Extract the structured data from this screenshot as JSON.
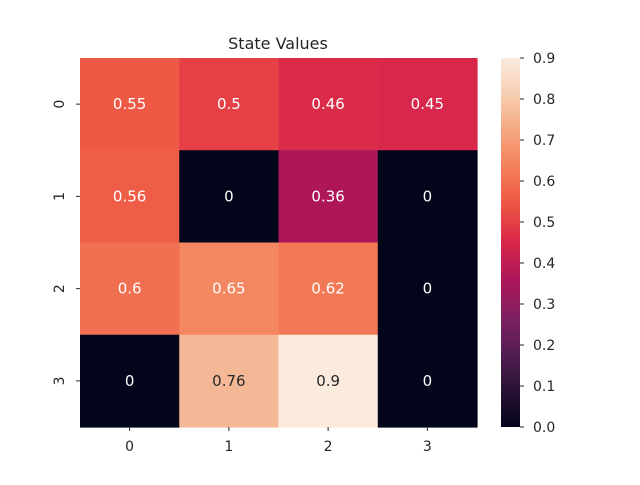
{
  "chart_data": {
    "type": "heatmap",
    "title": "State Values",
    "xlabel": "",
    "ylabel": "",
    "x_categories": [
      "0",
      "1",
      "2",
      "3"
    ],
    "y_categories": [
      "0",
      "1",
      "2",
      "3"
    ],
    "values": [
      [
        0.55,
        0.5,
        0.46,
        0.45
      ],
      [
        0.56,
        0,
        0.36,
        0
      ],
      [
        0.6,
        0.65,
        0.62,
        0
      ],
      [
        0,
        0.76,
        0.9,
        0
      ]
    ],
    "annotations": [
      [
        "0.55",
        "0.5",
        "0.46",
        "0.45"
      ],
      [
        "0.56",
        "0",
        "0.36",
        "0"
      ],
      [
        "0.6",
        "0.65",
        "0.62",
        "0"
      ],
      [
        "0",
        "0.76",
        "0.9",
        "0"
      ]
    ],
    "colorbar": {
      "min": 0.0,
      "max": 0.9,
      "ticks": [
        "0.0",
        "0.1",
        "0.2",
        "0.3",
        "0.4",
        "0.5",
        "0.6",
        "0.7",
        "0.8",
        "0.9"
      ],
      "colormap": "rocket"
    },
    "grid": false
  }
}
